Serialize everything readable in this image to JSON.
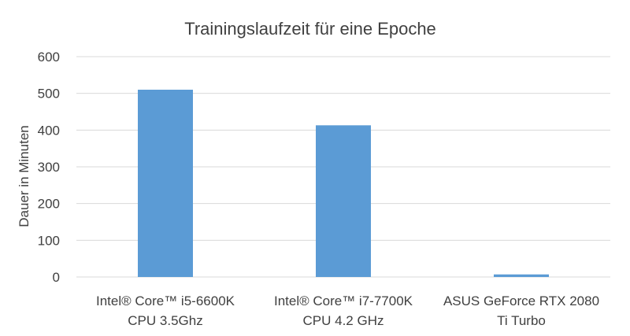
{
  "chart_data": {
    "type": "bar",
    "title": "Trainingslaufzeit für eine Epoche",
    "xlabel": "",
    "ylabel": "Dauer in Minuten",
    "ylim": [
      0,
      600
    ],
    "yticks": [
      0,
      100,
      200,
      300,
      400,
      500,
      600
    ],
    "grid": true,
    "categories": [
      [
        "Intel® Core™ i5-6600K",
        "CPU 3.5Ghz"
      ],
      [
        "Intel® Core™ i7-7700K",
        "CPU 4.2 GHz"
      ],
      [
        "ASUS GeForce RTX 2080",
        "Ti Turbo"
      ]
    ],
    "values": [
      510,
      413,
      7
    ],
    "colors": {
      "bar": "#5b9bd5",
      "grid": "#d9d9d9",
      "text": "#404040"
    }
  }
}
